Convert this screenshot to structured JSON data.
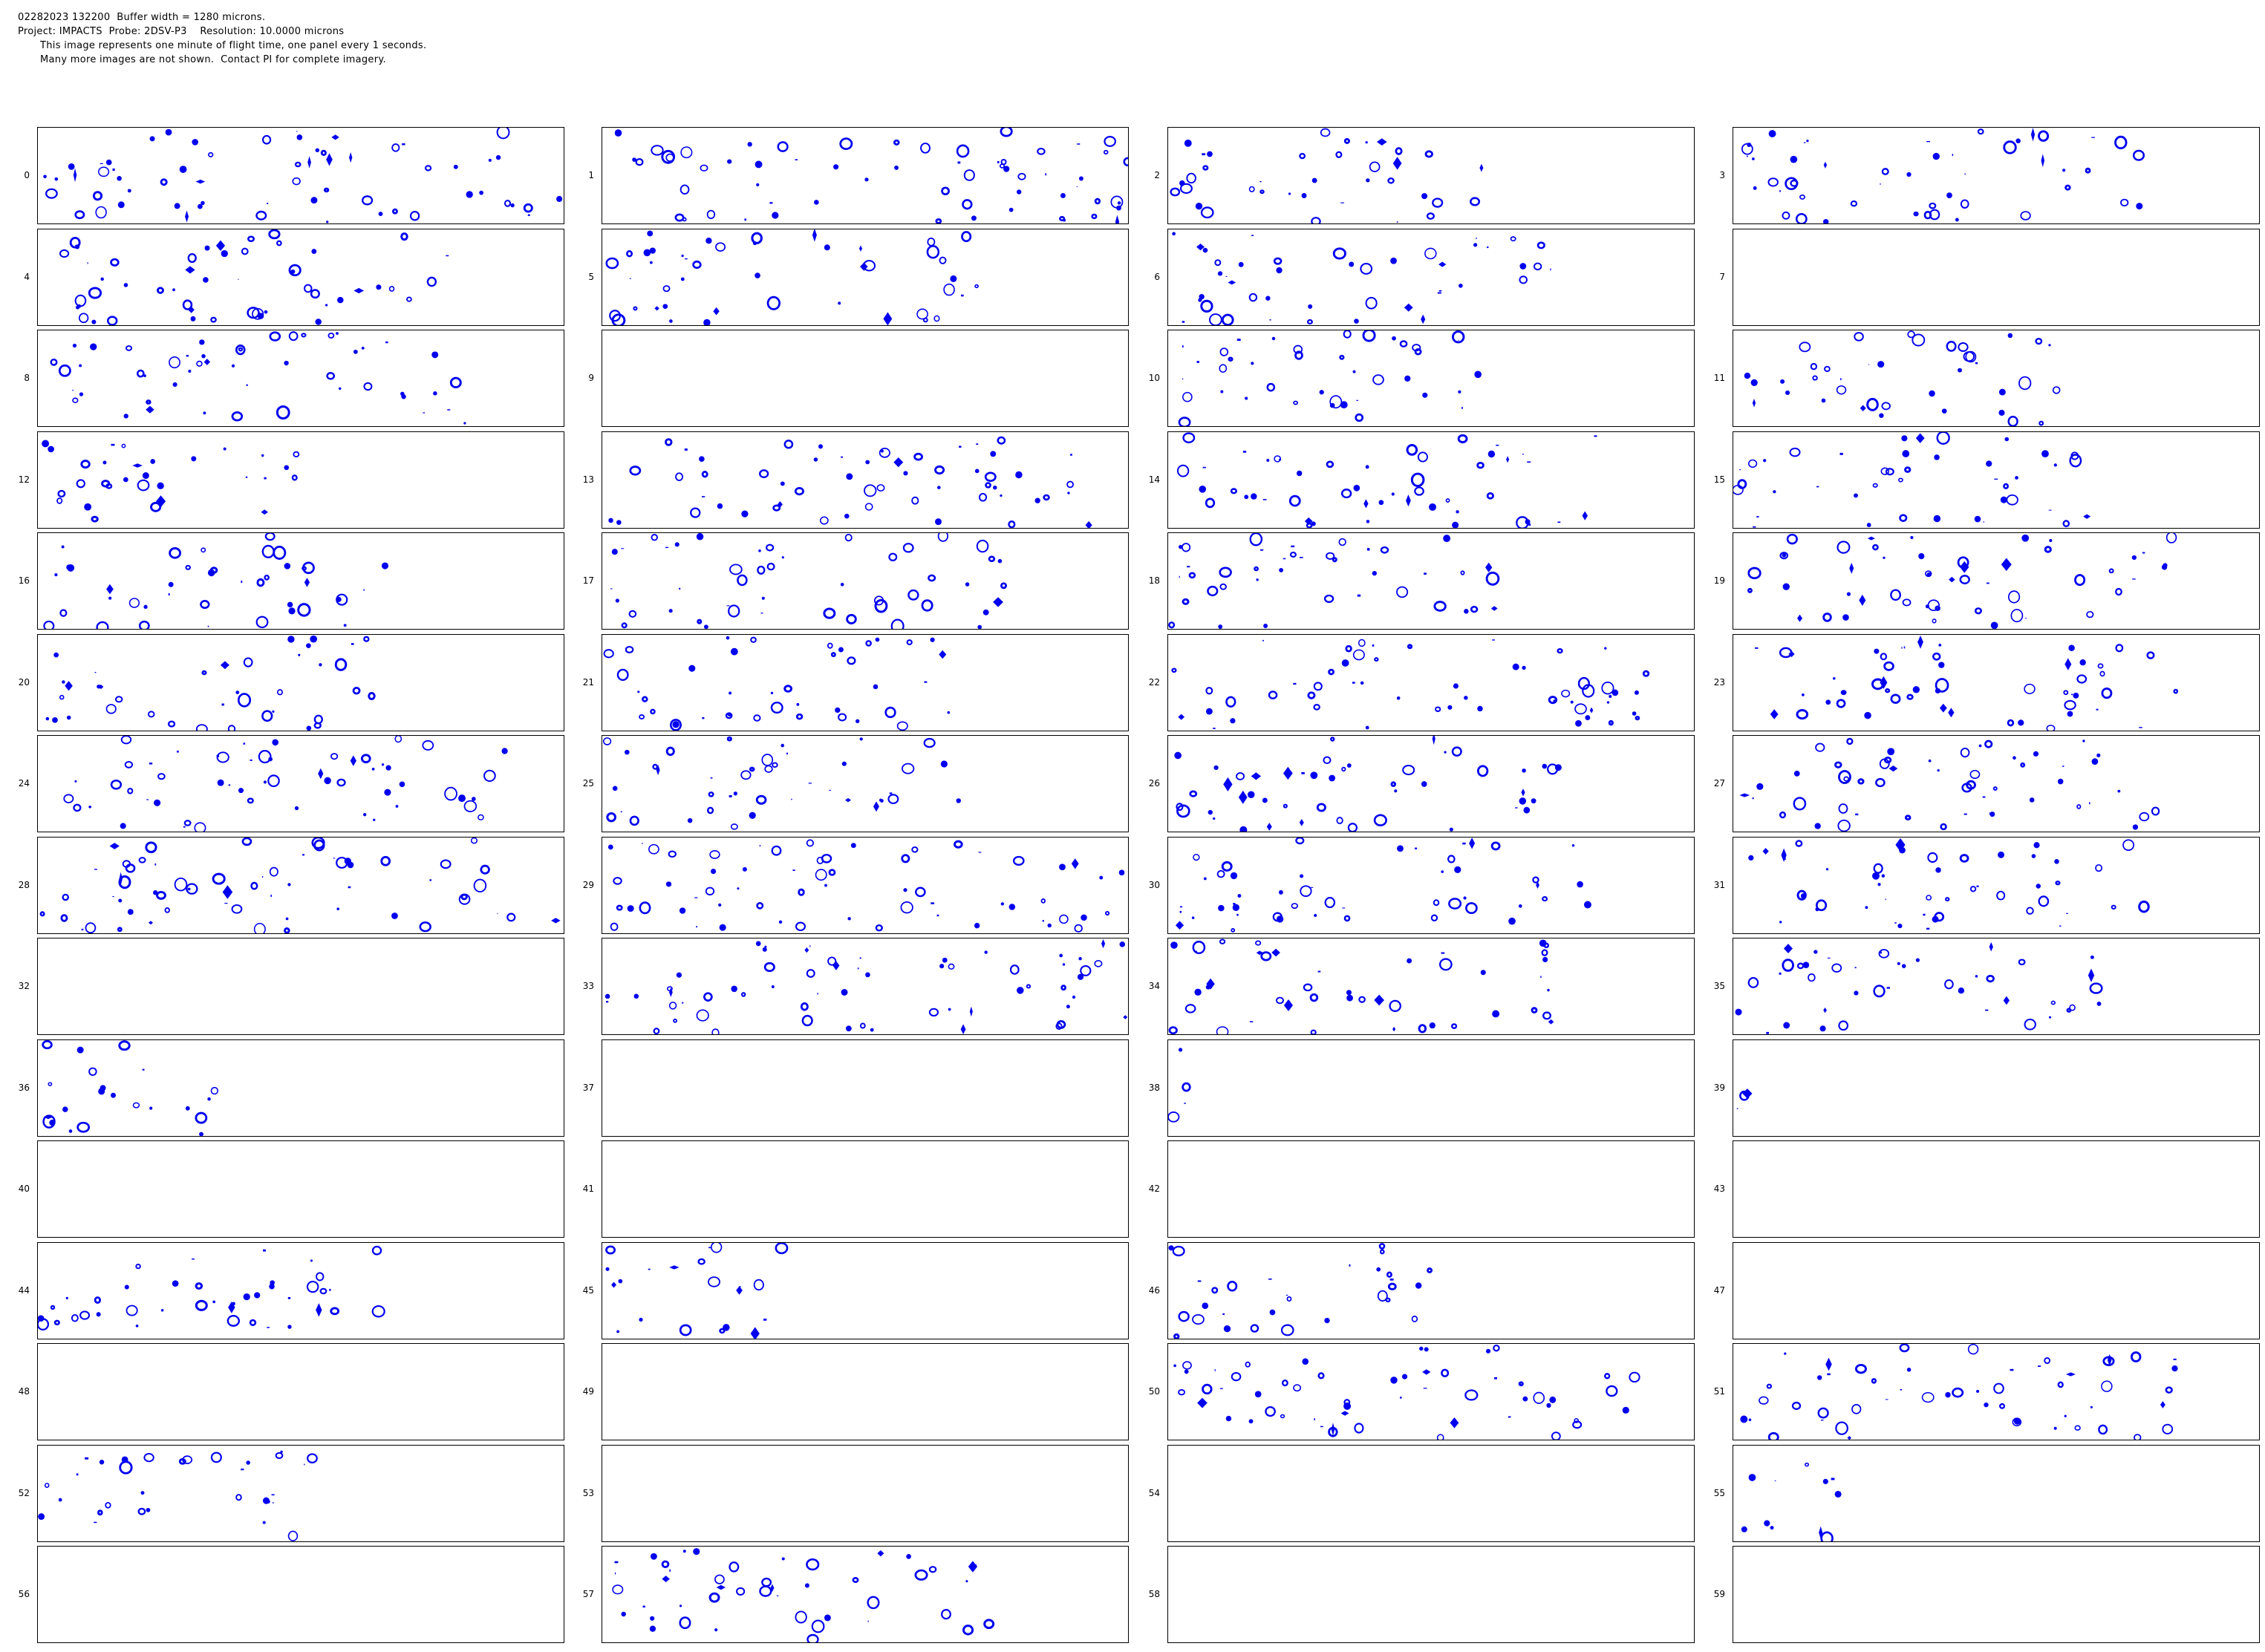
{
  "header": {
    "line1": "02282023 132200  Buffer width = 1280 microns.",
    "line2": "Project: IMPACTS  Probe: 2DSV-P3    Resolution: 10.0000 microns",
    "line3": "This image represents one minute of flight time, one panel every 1 seconds.",
    "line4": "Many more images are not shown.  Contact PI for complete imagery."
  },
  "colors": {
    "particle": "#0000ee",
    "frame": "#000000"
  },
  "panels": [
    {
      "label": "0",
      "fill": 1.0
    },
    {
      "label": "1",
      "fill": 1.0
    },
    {
      "label": "2",
      "fill": 0.6
    },
    {
      "label": "3",
      "fill": 0.8
    },
    {
      "label": "4",
      "fill": 0.84
    },
    {
      "label": "5",
      "fill": 0.73
    },
    {
      "label": "6",
      "fill": 0.74
    },
    {
      "label": "7",
      "fill": 0.0
    },
    {
      "label": "8",
      "fill": 0.82
    },
    {
      "label": "9",
      "fill": 0.0
    },
    {
      "label": "10",
      "fill": 0.65
    },
    {
      "label": "11",
      "fill": 0.64
    },
    {
      "label": "12",
      "fill": 0.5
    },
    {
      "label": "13",
      "fill": 0.92
    },
    {
      "label": "14",
      "fill": 0.82
    },
    {
      "label": "15",
      "fill": 0.68
    },
    {
      "label": "16",
      "fill": 0.66
    },
    {
      "label": "17",
      "fill": 0.77
    },
    {
      "label": "18",
      "fill": 0.65
    },
    {
      "label": "19",
      "fill": 0.84
    },
    {
      "label": "20",
      "fill": 0.64
    },
    {
      "label": "21",
      "fill": 0.66
    },
    {
      "label": "22",
      "fill": 0.92
    },
    {
      "label": "23",
      "fill": 0.86
    },
    {
      "label": "24",
      "fill": 0.9
    },
    {
      "label": "25",
      "fill": 0.68
    },
    {
      "label": "26",
      "fill": 0.78
    },
    {
      "label": "27",
      "fill": 0.85
    },
    {
      "label": "28",
      "fill": 1.0
    },
    {
      "label": "29",
      "fill": 1.0
    },
    {
      "label": "30",
      "fill": 0.8
    },
    {
      "label": "31",
      "fill": 0.8
    },
    {
      "label": "32",
      "fill": 0.0
    },
    {
      "label": "33",
      "fill": 1.0
    },
    {
      "label": "34",
      "fill": 0.73
    },
    {
      "label": "35",
      "fill": 0.7
    },
    {
      "label": "36",
      "fill": 0.36
    },
    {
      "label": "37",
      "fill": 0.0
    },
    {
      "label": "38",
      "fill": 0.03
    },
    {
      "label": "39",
      "fill": 0.02
    },
    {
      "label": "40",
      "fill": 0.0
    },
    {
      "label": "41",
      "fill": 0.0
    },
    {
      "label": "42",
      "fill": 0.0
    },
    {
      "label": "43",
      "fill": 0.0
    },
    {
      "label": "44",
      "fill": 0.66
    },
    {
      "label": "45",
      "fill": 0.35
    },
    {
      "label": "46",
      "fill": 0.5
    },
    {
      "label": "47",
      "fill": 0.0
    },
    {
      "label": "48",
      "fill": 0.0
    },
    {
      "label": "49",
      "fill": 0.0
    },
    {
      "label": "50",
      "fill": 0.9
    },
    {
      "label": "51",
      "fill": 0.85
    },
    {
      "label": "52",
      "fill": 0.52
    },
    {
      "label": "53",
      "fill": 0.0
    },
    {
      "label": "54",
      "fill": 0.0
    },
    {
      "label": "55",
      "fill": 0.2
    },
    {
      "label": "56",
      "fill": 0.0
    },
    {
      "label": "57",
      "fill": 0.75
    },
    {
      "label": "58",
      "fill": 0.0
    },
    {
      "label": "59",
      "fill": 0.0
    }
  ]
}
